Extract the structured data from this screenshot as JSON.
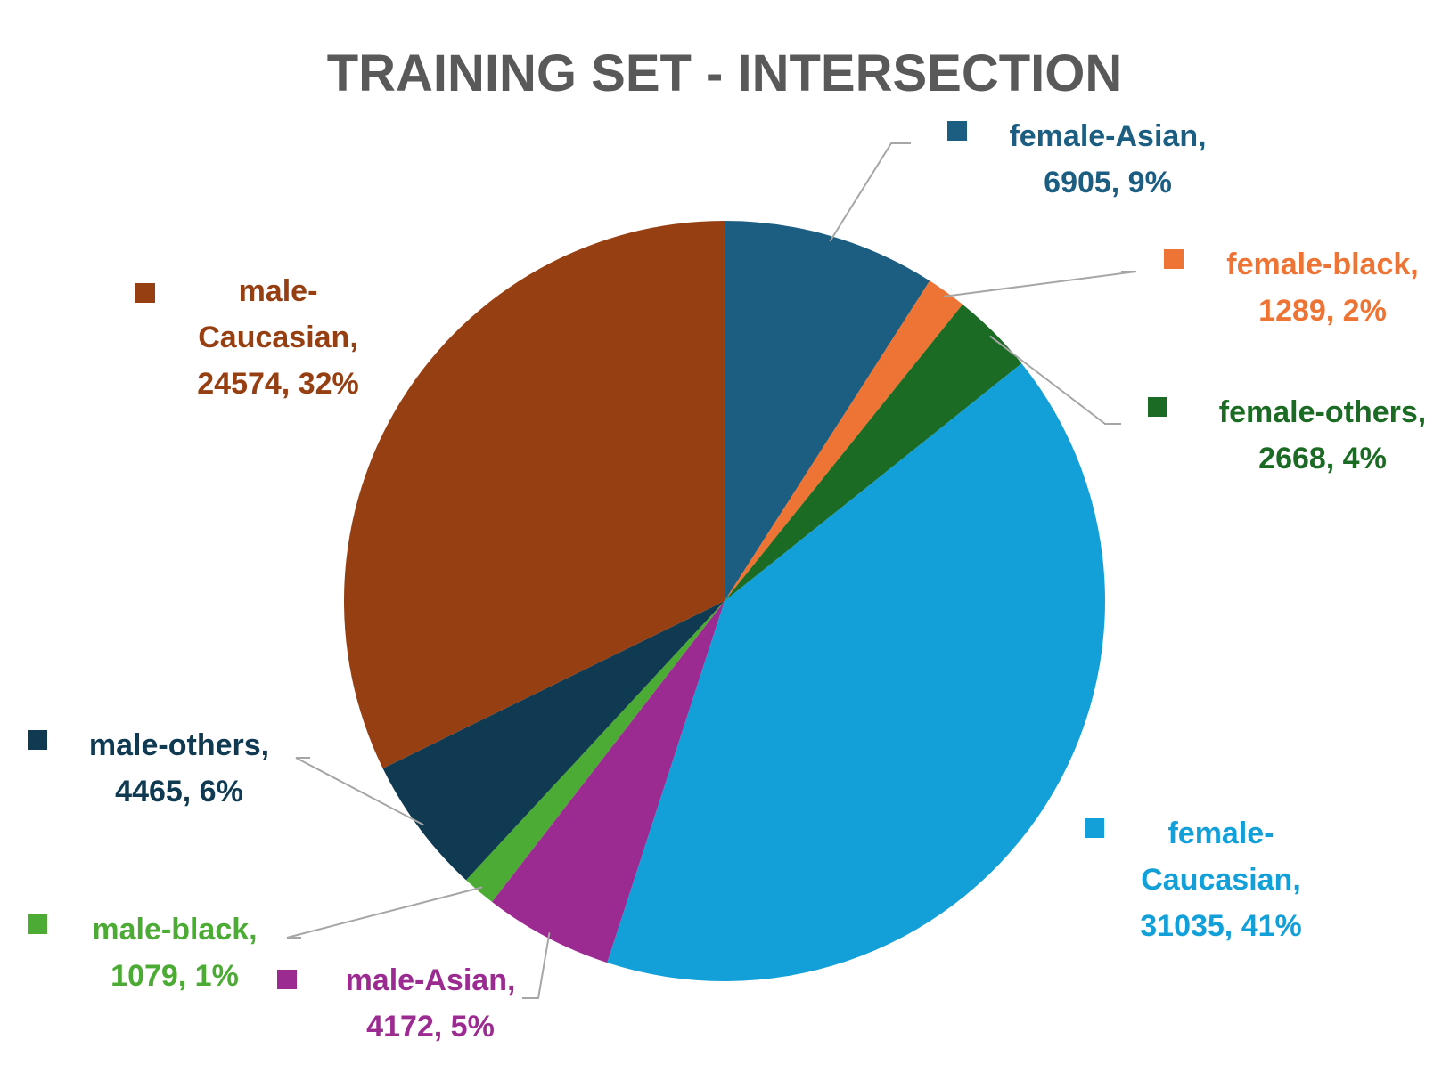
{
  "chart_data": {
    "type": "pie",
    "title": "TRAINING SET - INTERSECTION",
    "start_angle_deg": 0,
    "direction": "clockwise",
    "slices": [
      {
        "name": "female-Asian",
        "value": 6905,
        "percent": "9%",
        "color": "#1b5e82",
        "label_lines": [
          "female-Asian,",
          "6905, 9%"
        ]
      },
      {
        "name": "female-black",
        "value": 1289,
        "percent": "2%",
        "color": "#ed7434",
        "label_lines": [
          "female-black,",
          "1289, 2%"
        ]
      },
      {
        "name": "female-others",
        "value": 2668,
        "percent": "4%",
        "color": "#1c6b24",
        "label_lines": [
          "female-others,",
          "2668, 4%"
        ]
      },
      {
        "name": "female-Caucasian",
        "value": 31035,
        "percent": "41%",
        "color": "#139fd8",
        "label_lines": [
          "female-",
          "Caucasian,",
          "31035, 41%"
        ]
      },
      {
        "name": "male-Asian",
        "value": 4172,
        "percent": "5%",
        "color": "#9c2b91",
        "label_lines": [
          "male-Asian,",
          "4172, 5%"
        ]
      },
      {
        "name": "male-black",
        "value": 1079,
        "percent": "1%",
        "color": "#4cab34",
        "label_lines": [
          "male-black,",
          "1079, 1%"
        ]
      },
      {
        "name": "male-others",
        "value": 4465,
        "percent": "6%",
        "color": "#0f3a52",
        "label_lines": [
          "male-others,",
          "4465, 6%"
        ]
      },
      {
        "name": "male-Caucasian",
        "value": 24574,
        "percent": "32%",
        "color": "#953f12",
        "label_lines": [
          "male-",
          "Caucasian,",
          "24574, 32%"
        ]
      }
    ]
  }
}
